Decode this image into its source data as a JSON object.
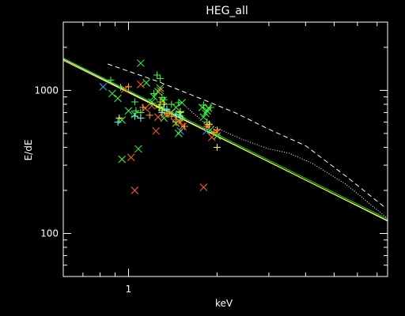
{
  "chart_data": {
    "type": "scatter",
    "title": "HEG_all",
    "xlabel": "keV",
    "ylabel": "E/dE",
    "x_scale": "log",
    "y_scale": "log",
    "xlim": [
      0.6,
      7.6
    ],
    "ylim": [
      50,
      3000
    ],
    "x_ticks": [
      1
    ],
    "x_tick_labels": [
      "1"
    ],
    "y_ticks": [
      100,
      1000
    ],
    "y_tick_labels": [
      "100",
      "1000"
    ],
    "grid": false,
    "colors": {
      "background": "#000000",
      "axes": "#ffffff",
      "line_yellow": "#ffff00",
      "line_green": "#00dd33",
      "cross_blue": "#33aaff",
      "cross_green": "#33ff44",
      "plus_green": "#44ff44",
      "cross_orange": "#ff6622",
      "plus_orange": "#ffaa22",
      "plus_cyan": "#66ffff",
      "plus_yellow": "#ffff44"
    },
    "lines": [
      {
        "style": "dashed",
        "color": "#ffffff",
        "x": [
          0.85,
          1.25,
          1.75,
          2.3,
          3.0,
          4.0,
          5.5,
          7.5
        ],
        "y": [
          1530,
          1160,
          880,
          700,
          535,
          410,
          250,
          150
        ]
      },
      {
        "style": "dotted",
        "color": "#ffffff",
        "x": [
          1.55,
          1.8,
          2.4,
          3.0,
          3.5,
          4.2,
          5.5,
          7.5
        ],
        "y": [
          785,
          600,
          460,
          390,
          365,
          310,
          220,
          130
        ]
      },
      {
        "style": "solid",
        "color": "#ffffff",
        "x": [
          0.6,
          7.6
        ],
        "y": [
          1650,
          122
        ]
      },
      {
        "style": "solid",
        "color": "#ffff00",
        "x": [
          0.6,
          7.6
        ],
        "y": [
          1620,
          123
        ]
      },
      {
        "style": "solid",
        "color": "#00dd33",
        "x": [
          0.6,
          7.6
        ],
        "y": [
          1680,
          126
        ]
      }
    ],
    "series": [
      {
        "marker": "x",
        "color": "#33aaff",
        "x": [
          0.82,
          1.5,
          1.84
        ],
        "y": [
          1060,
          520,
          520
        ]
      },
      {
        "marker": "x",
        "color": "#33ff44",
        "x": [
          0.88,
          0.92,
          0.95,
          0.95,
          1.0,
          1.05,
          1.08,
          1.1,
          1.15,
          1.2,
          1.22,
          1.26,
          1.28,
          1.3,
          1.31,
          1.32,
          1.4,
          1.45,
          1.45,
          1.48,
          1.5,
          1.52,
          1.78,
          1.8,
          1.83,
          1.85,
          1.87,
          1.9,
          2.0
        ],
        "y": [
          950,
          880,
          620,
          330,
          720,
          680,
          390,
          1550,
          1130,
          830,
          900,
          980,
          1040,
          760,
          850,
          640,
          700,
          760,
          590,
          500,
          680,
          820,
          760,
          650,
          690,
          720,
          750,
          530,
          480
        ]
      },
      {
        "marker": "+",
        "color": "#44ff44",
        "x": [
          0.87,
          0.94,
          1.05,
          1.06,
          1.1,
          1.22,
          1.25,
          1.28,
          1.3,
          1.32,
          1.35,
          1.4,
          1.48,
          1.5,
          1.52,
          1.8,
          1.85,
          1.9
        ],
        "y": [
          1180,
          1050,
          830,
          720,
          700,
          950,
          1280,
          1210,
          890,
          860,
          720,
          800,
          820,
          700,
          640,
          790,
          600,
          760
        ]
      },
      {
        "marker": "x",
        "color": "#ff6622",
        "x": [
          0.97,
          1.02,
          1.05,
          1.1,
          1.14,
          1.2,
          1.24,
          1.26,
          1.28,
          1.33,
          1.38,
          1.45,
          1.5,
          1.53,
          1.8,
          1.85,
          1.92,
          2.0
        ],
        "y": [
          1020,
          340,
          200,
          1100,
          750,
          780,
          520,
          650,
          1000,
          680,
          690,
          640,
          600,
          560,
          210,
          560,
          470,
          510
        ]
      },
      {
        "marker": "+",
        "color": "#ffaa22",
        "x": [
          1.0,
          1.12,
          1.18,
          1.28,
          1.3,
          1.35,
          1.4,
          1.45,
          1.5,
          1.55,
          1.85,
          1.95,
          2.0
        ],
        "y": [
          1060,
          760,
          670,
          830,
          720,
          690,
          660,
          600,
          620,
          560,
          560,
          510,
          530
        ]
      },
      {
        "marker": "+",
        "color": "#66ffff",
        "x": [
          0.92,
          1.05,
          1.1,
          1.3,
          1.35,
          1.45,
          1.5
        ],
        "y": [
          600,
          660,
          640,
          700,
          740,
          680,
          660
        ]
      },
      {
        "marker": "+",
        "color": "#ffff44",
        "x": [
          0.93,
          1.27,
          1.32,
          1.5,
          1.88,
          2.0
        ],
        "y": [
          640,
          760,
          800,
          710,
          580,
          400
        ]
      }
    ]
  }
}
